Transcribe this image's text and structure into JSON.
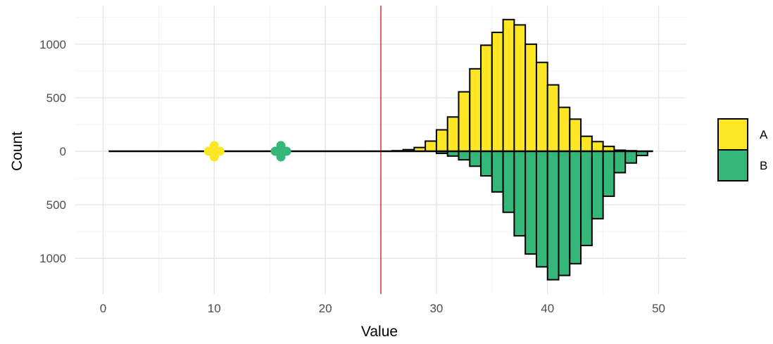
{
  "chart_data": {
    "type": "bar",
    "subtype": "mirrored-histogram",
    "title": "",
    "xlabel": "Value",
    "ylabel": "Count",
    "xlim": [
      -2.5,
      52.5
    ],
    "ylim_up": [
      0,
      1300
    ],
    "ylim_down": [
      0,
      1250
    ],
    "x_ticks": [
      "0",
      "10",
      "20",
      "30",
      "40",
      "50"
    ],
    "y_ticks_up": [
      "0",
      "500",
      "1000"
    ],
    "y_ticks_down": [
      "500",
      "1000"
    ],
    "grid": true,
    "bin_width": 1,
    "legend": {
      "position": "right",
      "entries": [
        "A",
        "B"
      ]
    },
    "series": [
      {
        "name": "A",
        "direction": "up",
        "color": "#FDE725",
        "bins": [
          {
            "x0": 26,
            "x1": 27,
            "value": 5
          },
          {
            "x0": 27,
            "x1": 28,
            "value": 15
          },
          {
            "x0": 28,
            "x1": 29,
            "value": 35
          },
          {
            "x0": 29,
            "x1": 30,
            "value": 95
          },
          {
            "x0": 30,
            "x1": 31,
            "value": 200
          },
          {
            "x0": 31,
            "x1": 32,
            "value": 320
          },
          {
            "x0": 32,
            "x1": 33,
            "value": 555
          },
          {
            "x0": 33,
            "x1": 34,
            "value": 770
          },
          {
            "x0": 34,
            "x1": 35,
            "value": 990
          },
          {
            "x0": 35,
            "x1": 36,
            "value": 1110
          },
          {
            "x0": 36,
            "x1": 37,
            "value": 1230
          },
          {
            "x0": 37,
            "x1": 38,
            "value": 1180
          },
          {
            "x0": 38,
            "x1": 39,
            "value": 1000
          },
          {
            "x0": 39,
            "x1": 40,
            "value": 830
          },
          {
            "x0": 40,
            "x1": 41,
            "value": 620
          },
          {
            "x0": 41,
            "x1": 42,
            "value": 410
          },
          {
            "x0": 42,
            "x1": 43,
            "value": 300
          },
          {
            "x0": 43,
            "x1": 44,
            "value": 140
          },
          {
            "x0": 44,
            "x1": 45,
            "value": 90
          },
          {
            "x0": 45,
            "x1": 46,
            "value": 45
          },
          {
            "x0": 46,
            "x1": 47,
            "value": 10
          },
          {
            "x0": 47,
            "x1": 48,
            "value": 5
          }
        ]
      },
      {
        "name": "B",
        "direction": "down",
        "color": "#35B779",
        "bins": [
          {
            "x0": 30,
            "x1": 31,
            "value": 20
          },
          {
            "x0": 31,
            "x1": 32,
            "value": 45
          },
          {
            "x0": 32,
            "x1": 33,
            "value": 80
          },
          {
            "x0": 33,
            "x1": 34,
            "value": 140
          },
          {
            "x0": 34,
            "x1": 35,
            "value": 230
          },
          {
            "x0": 35,
            "x1": 36,
            "value": 380
          },
          {
            "x0": 36,
            "x1": 37,
            "value": 570
          },
          {
            "x0": 37,
            "x1": 38,
            "value": 790
          },
          {
            "x0": 38,
            "x1": 39,
            "value": 960
          },
          {
            "x0": 39,
            "x1": 40,
            "value": 1080
          },
          {
            "x0": 40,
            "x1": 41,
            "value": 1200
          },
          {
            "x0": 41,
            "x1": 42,
            "value": 1160
          },
          {
            "x0": 42,
            "x1": 43,
            "value": 1050
          },
          {
            "x0": 43,
            "x1": 44,
            "value": 880
          },
          {
            "x0": 44,
            "x1": 45,
            "value": 630
          },
          {
            "x0": 45,
            "x1": 46,
            "value": 420
          },
          {
            "x0": 46,
            "x1": 47,
            "value": 200
          },
          {
            "x0": 47,
            "x1": 48,
            "value": 110
          },
          {
            "x0": 48,
            "x1": 49,
            "value": 40
          }
        ]
      }
    ],
    "baseline": {
      "x_from": 0.5,
      "x_to": 49.5,
      "color": "#000000"
    },
    "vline": {
      "x": 25,
      "color": "#CC0000"
    },
    "points": [
      {
        "series": "A",
        "x": 10,
        "y": 0,
        "color": "#FDE725"
      },
      {
        "series": "B",
        "x": 16,
        "y": 0,
        "color": "#35B779"
      }
    ]
  }
}
